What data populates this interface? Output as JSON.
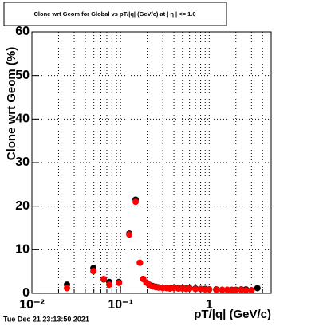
{
  "chart_data": {
    "type": "scatter",
    "title": "Clone wrt Geom for Global vs pT/|q| (GeV/c) at | η | <= 1.0",
    "x_label": "pT/|q| (GeV/c)",
    "y_label": "Clone wrt Geom (%)",
    "timestamp": "Tue Dec 21 23:13:50 2021",
    "x_scale": "log",
    "grid": true,
    "xlim": [
      0.01,
      5
    ],
    "ylim": [
      0,
      60
    ],
    "xticks": [
      {
        "value": 0.01,
        "label": "10⁻²"
      },
      {
        "value": 0.1,
        "label": "10⁻¹"
      },
      1
    ],
    "xminorticks": [
      0.02,
      0.03,
      0.04,
      0.05,
      0.06,
      0.07,
      0.08,
      0.09,
      0.2,
      0.3,
      0.4,
      0.5,
      0.6,
      0.7,
      0.8,
      0.9,
      2,
      3,
      4,
      5
    ],
    "yticks": [
      0,
      10,
      20,
      30,
      40,
      50,
      60
    ],
    "x": [
      0.0249,
      0.0494,
      0.0647,
      0.0746,
      0.096,
      0.1256,
      0.148,
      0.165,
      0.18,
      0.195,
      0.21,
      0.23,
      0.25,
      0.27,
      0.3,
      0.33,
      0.36,
      0.4,
      0.45,
      0.5,
      0.55,
      0.6,
      0.7,
      0.8,
      0.9,
      1.0,
      1.2,
      1.4,
      1.6,
      1.8,
      2.0,
      2.3,
      2.6,
      3.0,
      3.5
    ],
    "series": [
      {
        "color": "#000000",
        "values": [
          2,
          5.8,
          3.2,
          2.6,
          2.6,
          13.7,
          21.5,
          7,
          3.3,
          2.5,
          2,
          1.7,
          1.5,
          1.4,
          1.3,
          1.3,
          1.2,
          1.3,
          1.2,
          1.2,
          1.1,
          1.2,
          1.1,
          1.0,
          1.0,
          0.9,
          0.9,
          0.8,
          0.8,
          0.8,
          0.8,
          0.9,
          0.9,
          0.7,
          1.2
        ]
      },
      {
        "color": "#ff0000",
        "values": [
          1.2,
          5.1,
          3.3,
          2,
          2.4,
          13.5,
          21,
          7,
          3.3,
          2.5,
          2,
          1.6,
          1.4,
          1.3,
          1.2,
          1.2,
          1.1,
          1.2,
          1.1,
          1.1,
          1.0,
          1.1,
          1.0,
          1.0,
          0.9,
          0.9,
          0.8,
          0.8,
          0.8,
          0.7,
          0.7,
          0.8,
          0.7,
          0.7,
          null
        ]
      }
    ]
  }
}
